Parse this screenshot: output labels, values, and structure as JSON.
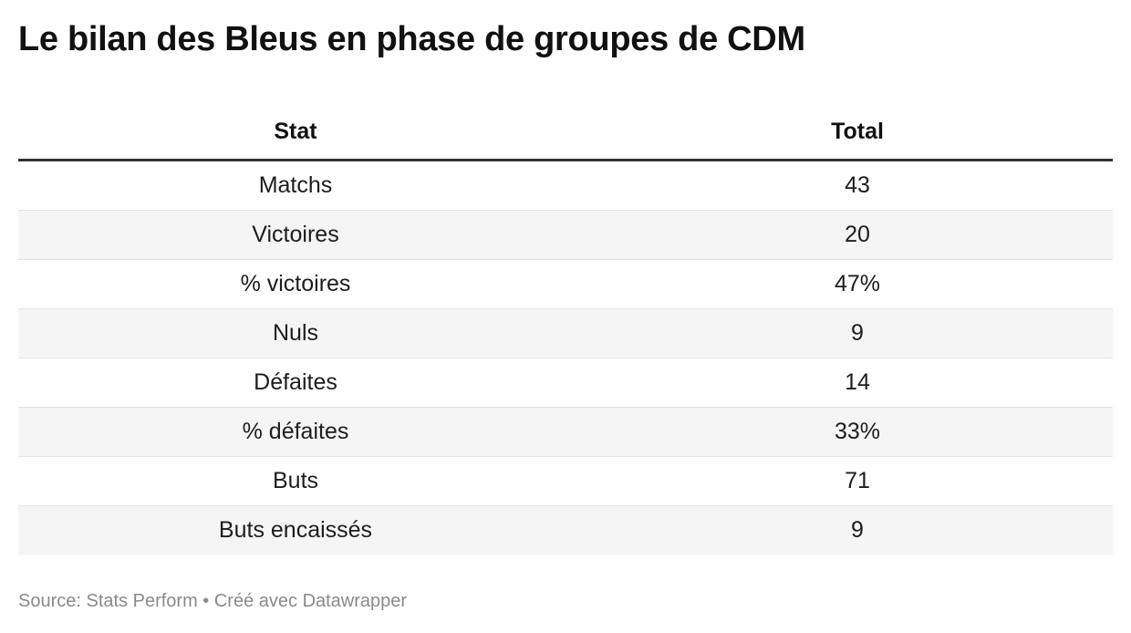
{
  "title": "Le bilan des Bleus en phase de groupes de CDM",
  "table": {
    "header": [
      "Stat",
      "Total"
    ],
    "rows": [
      [
        "Matchs",
        "43"
      ],
      [
        "Victoires",
        "20"
      ],
      [
        "% victoires",
        "47%"
      ],
      [
        "Nuls",
        "9"
      ],
      [
        "Défaites",
        "14"
      ],
      [
        "% défaites",
        "33%"
      ],
      [
        "Buts",
        "71"
      ],
      [
        "Buts encaissés",
        "9"
      ]
    ]
  },
  "footer": "Source: Stats Perform • Créé avec Datawrapper"
}
